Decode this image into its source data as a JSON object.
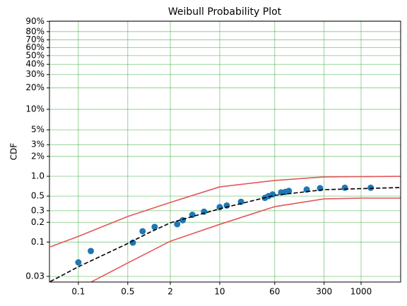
{
  "chart_data": {
    "type": "scatter",
    "title": "Weibull Probability Plot",
    "y_label": "CDF",
    "xscale": "log",
    "yscale": "weibull",
    "grid": true,
    "grid_color": "#2ca02c",
    "xlim": [
      0.039,
      3630
    ],
    "xticks": [
      0.1,
      0.5,
      2,
      10,
      60,
      300,
      1000
    ],
    "ylim": [
      0.0246,
      90.2
    ],
    "yticks": [
      0.03,
      0.1,
      0.2,
      0.3,
      0.5,
      {
        "value": 1,
        "label": "1.0"
      },
      {
        "value": 2,
        "label": "2%"
      },
      {
        "value": 3,
        "label": "3%"
      },
      {
        "value": 5,
        "label": "5%"
      },
      {
        "value": 10,
        "label": "10%"
      },
      {
        "value": 20,
        "label": "20%"
      },
      {
        "value": 30,
        "label": "30%"
      },
      {
        "value": 40,
        "label": "40%"
      },
      {
        "value": 50,
        "label": "50%"
      },
      {
        "value": 60,
        "label": "60%"
      },
      {
        "value": 70,
        "label": "70%"
      },
      {
        "value": 80,
        "label": "80%"
      },
      {
        "value": 90,
        "label": "90%"
      }
    ],
    "series": [
      {
        "style": "markers",
        "color": "#1f77b4",
        "x": [
          0.1,
          0.15,
          0.59,
          0.81,
          1.2,
          2.5,
          3.0,
          4.1,
          6.0,
          10,
          12.6,
          20,
          43.6,
          49,
          56,
          74,
          85,
          95,
          170,
          263,
          590,
          1370
        ],
        "values": [
          0.049,
          0.073,
          0.098,
          0.146,
          0.17,
          0.187,
          0.215,
          0.26,
          0.29,
          0.34,
          0.36,
          0.41,
          0.47,
          0.5,
          0.53,
          0.57,
          0.58,
          0.6,
          0.63,
          0.66,
          0.67,
          0.67
        ]
      },
      {
        "style": "dashed",
        "color": "#000000",
        "x": [
          0.04,
          0.1,
          0.5,
          1,
          2,
          10,
          60,
          300,
          3600
        ],
        "values": [
          0.025,
          0.042,
          0.095,
          0.139,
          0.196,
          0.321,
          0.514,
          0.627,
          0.675
        ]
      },
      {
        "style": "solid",
        "color": "#e4575a",
        "x": [
          0.04,
          0.1,
          0.5,
          2,
          10,
          60,
          300,
          3600
        ],
        "values": [
          0.0845,
          0.122,
          0.245,
          0.401,
          0.69,
          0.865,
          0.978,
          1.0
        ]
      },
      {
        "style": "solid",
        "color": "#e4575a",
        "x": [
          0.15,
          0.5,
          2,
          10,
          60,
          300,
          1000,
          3600
        ],
        "values": [
          0.0245,
          0.048,
          0.103,
          0.186,
          0.346,
          0.454,
          0.466,
          0.466
        ]
      }
    ]
  }
}
